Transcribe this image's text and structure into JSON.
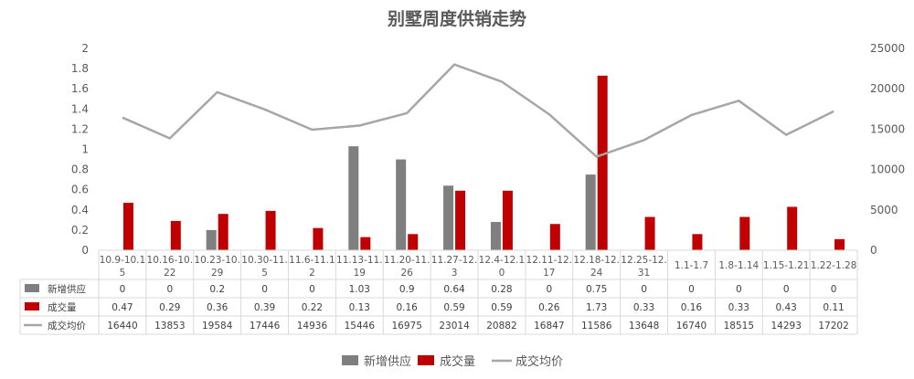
{
  "chart_data": {
    "type": "bar",
    "title": "别墅周度供销走势",
    "categories": [
      [
        "10.9-10.1",
        "5"
      ],
      [
        "10.16-10.",
        "22"
      ],
      [
        "10.23-10.",
        "29"
      ],
      [
        "10.30-11.",
        "5"
      ],
      [
        "11.6-11.1",
        "2"
      ],
      [
        "11.13-11.",
        "19"
      ],
      [
        "11.20-11.",
        "26"
      ],
      [
        "11.27-12.",
        "3"
      ],
      [
        "12.4-12.1",
        "0"
      ],
      [
        "12.11-12.",
        "17"
      ],
      [
        "12.18-12.",
        "24"
      ],
      [
        "12.25-12.",
        "31"
      ],
      [
        "1.1-1.7"
      ],
      [
        "1.8-1.14"
      ],
      [
        "1.15-1.21"
      ],
      [
        "1.22-1.28"
      ]
    ],
    "y_left": {
      "min": 0,
      "max": 2,
      "step": 0.2,
      "ticks": [
        "0",
        "0.2",
        "0.4",
        "0.6",
        "0.8",
        "1",
        "1.2",
        "1.4",
        "1.6",
        "1.8",
        "2"
      ]
    },
    "y_right": {
      "min": 0,
      "max": 25000,
      "step": 5000,
      "ticks": [
        "0",
        "5000",
        "10000",
        "15000",
        "20000",
        "25000"
      ]
    },
    "series": [
      {
        "name": "新增供应",
        "type": "bar",
        "axis": "left",
        "color": "#7f7f7f",
        "values": [
          0,
          0,
          0.2,
          0,
          0,
          1.03,
          0.9,
          0.64,
          0.28,
          0,
          0.75,
          0,
          0,
          0,
          0,
          0
        ],
        "labels": [
          "0",
          "0",
          "0.2",
          "0",
          "0",
          "1.03",
          "0.9",
          "0.64",
          "0.28",
          "0",
          "0.75",
          "0",
          "0",
          "0",
          "0",
          "0"
        ]
      },
      {
        "name": "成交量",
        "type": "bar",
        "axis": "left",
        "color": "#c00000",
        "values": [
          0.47,
          0.29,
          0.36,
          0.39,
          0.22,
          0.13,
          0.16,
          0.59,
          0.59,
          0.26,
          1.73,
          0.33,
          0.16,
          0.33,
          0.43,
          0.11
        ],
        "labels": [
          "0.47",
          "0.29",
          "0.36",
          "0.39",
          "0.22",
          "0.13",
          "0.16",
          "0.59",
          "0.59",
          "0.26",
          "1.73",
          "0.33",
          "0.16",
          "0.33",
          "0.43",
          "0.11"
        ]
      },
      {
        "name": "成交均价",
        "type": "line",
        "axis": "right",
        "color": "#a6a6a6",
        "values": [
          16440,
          13853,
          19584,
          17446,
          14936,
          15446,
          16975,
          23014,
          20882,
          16847,
          11586,
          13648,
          16740,
          18515,
          14293,
          17202
        ],
        "labels": [
          "16440",
          "13853",
          "19584",
          "17446",
          "14936",
          "15446",
          "16975",
          "23014",
          "20882",
          "16847",
          "11586",
          "13648",
          "16740",
          "18515",
          "14293",
          "17202"
        ]
      }
    ],
    "grid": false,
    "legend": "bottom-center",
    "data_table": true
  }
}
